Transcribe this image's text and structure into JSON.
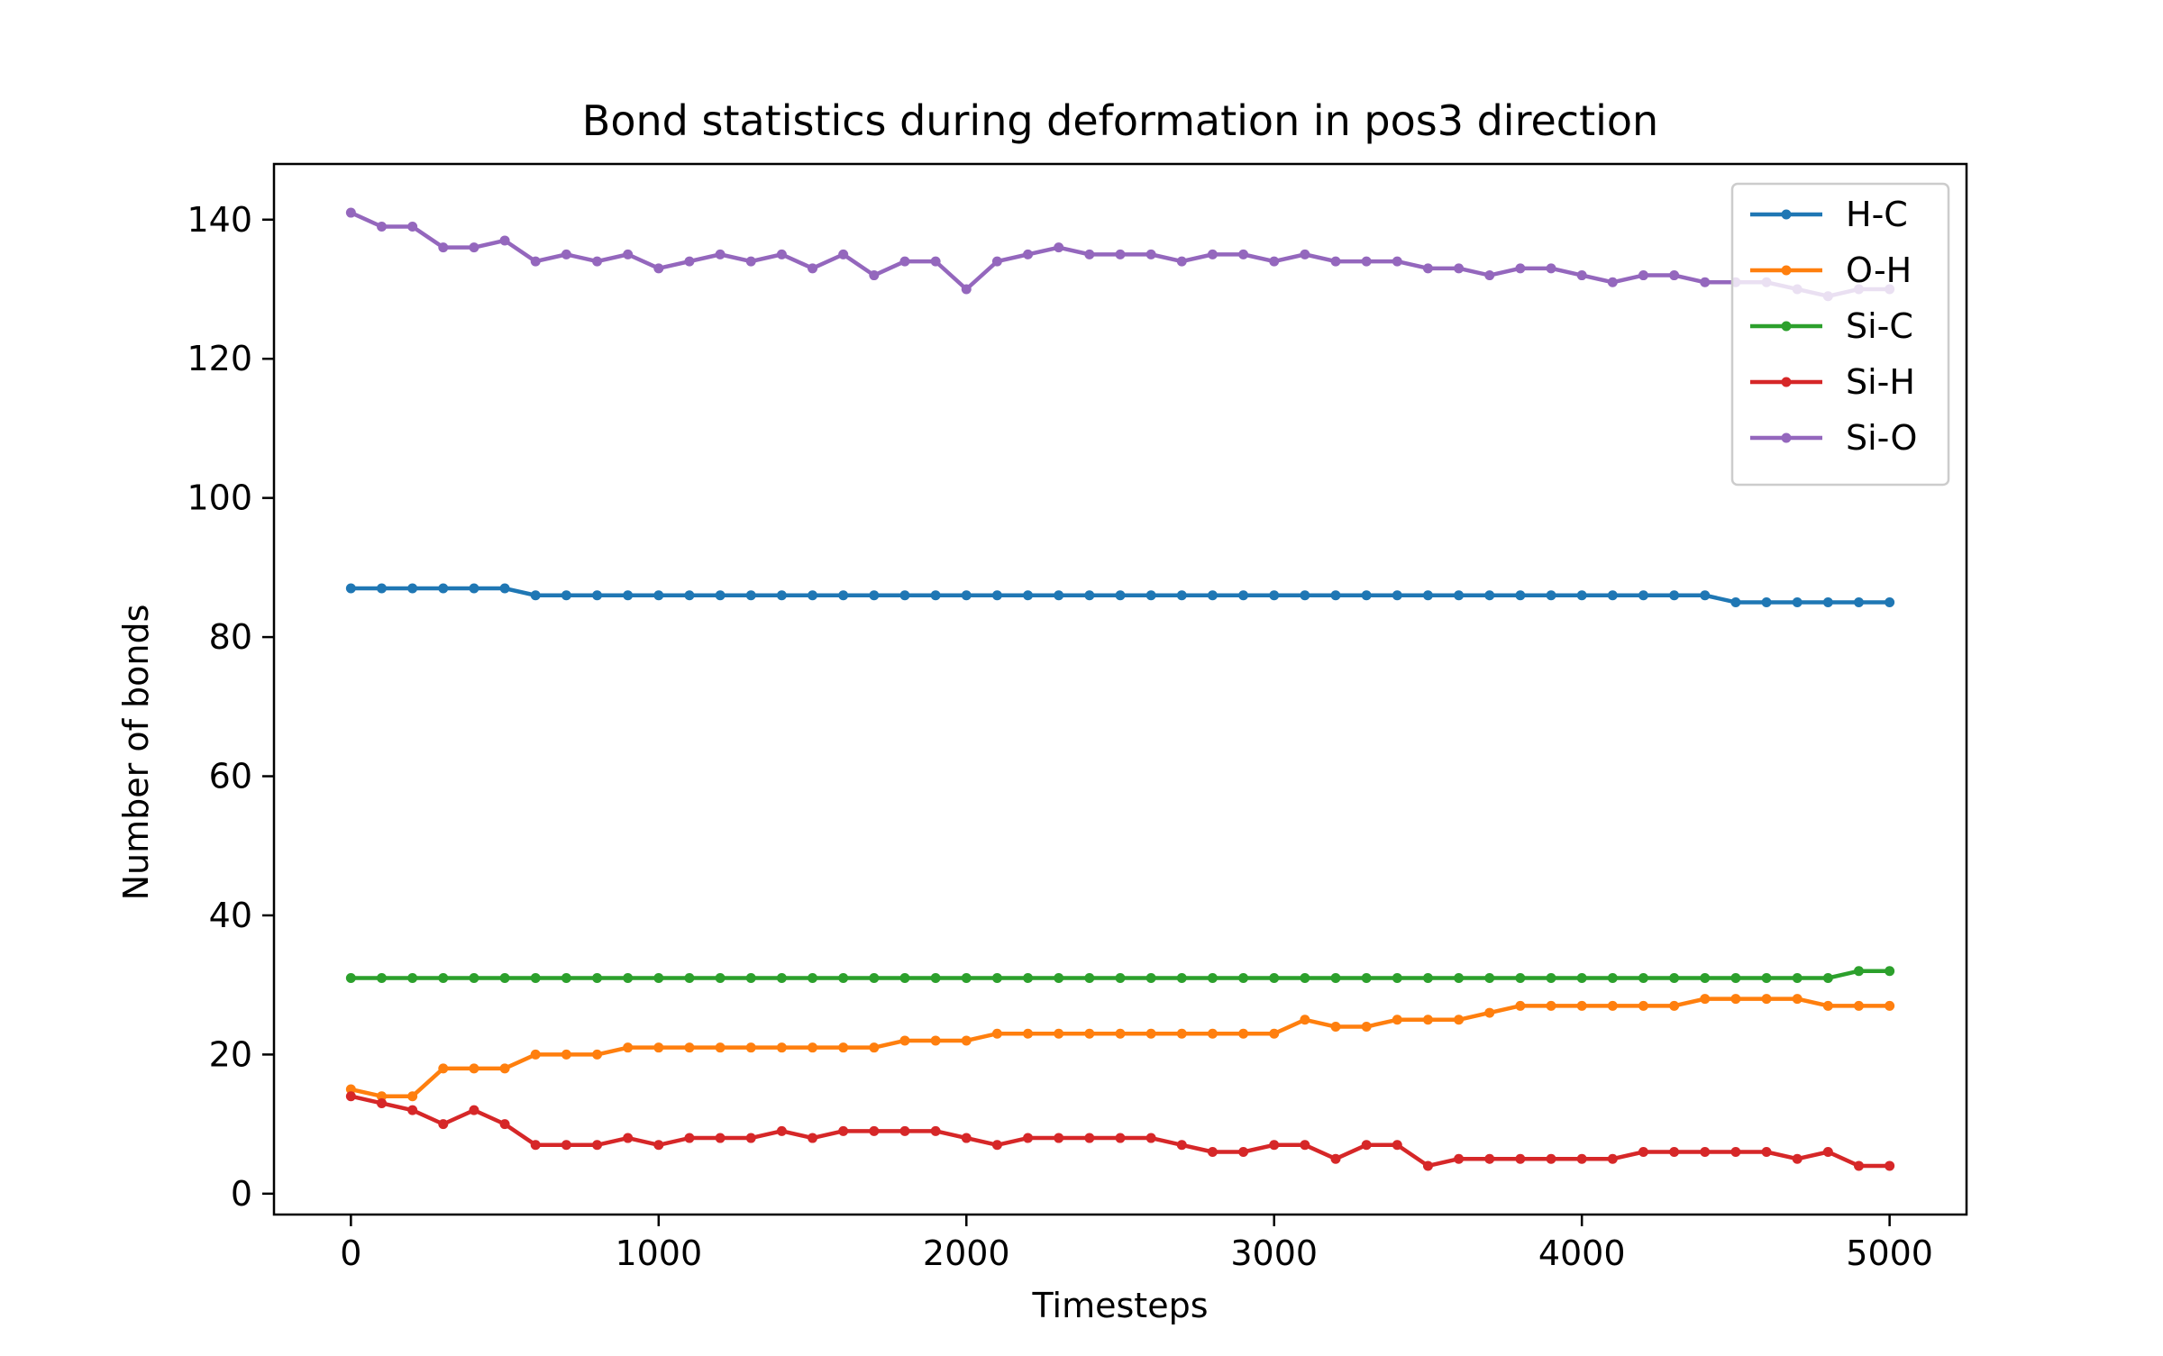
{
  "chart_data": {
    "type": "line",
    "title": "Bond statistics during deformation in pos3 direction",
    "xlabel": "Timesteps",
    "ylabel": "Number of bonds",
    "xlim": [
      -250,
      5250
    ],
    "ylim": [
      -3,
      148
    ],
    "xticks": [
      0,
      1000,
      2000,
      3000,
      4000,
      5000
    ],
    "yticks": [
      0,
      20,
      40,
      60,
      80,
      100,
      120,
      140
    ],
    "grid": false,
    "legend_position": "top-right",
    "x": [
      0,
      100,
      200,
      300,
      400,
      500,
      600,
      700,
      800,
      900,
      1000,
      1100,
      1200,
      1300,
      1400,
      1500,
      1600,
      1700,
      1800,
      1900,
      2000,
      2100,
      2200,
      2300,
      2400,
      2500,
      2600,
      2700,
      2800,
      2900,
      3000,
      3100,
      3200,
      3300,
      3400,
      3500,
      3600,
      3700,
      3800,
      3900,
      4000,
      4100,
      4200,
      4300,
      4400,
      4500,
      4600,
      4700,
      4800,
      4900,
      5000
    ],
    "series": [
      {
        "name": "H-C",
        "color": "#1f77b4",
        "values": [
          87,
          87,
          87,
          87,
          87,
          87,
          86,
          86,
          86,
          86,
          86,
          86,
          86,
          86,
          86,
          86,
          86,
          86,
          86,
          86,
          86,
          86,
          86,
          86,
          86,
          86,
          86,
          86,
          86,
          86,
          86,
          86,
          86,
          86,
          86,
          86,
          86,
          86,
          86,
          86,
          86,
          86,
          86,
          86,
          86,
          85,
          85,
          85,
          85,
          85,
          85
        ]
      },
      {
        "name": "O-H",
        "color": "#ff7f0e",
        "values": [
          15,
          14,
          14,
          18,
          18,
          18,
          20,
          20,
          20,
          21,
          21,
          21,
          21,
          21,
          21,
          21,
          21,
          21,
          22,
          22,
          22,
          23,
          23,
          23,
          23,
          23,
          23,
          23,
          23,
          23,
          23,
          25,
          24,
          24,
          25,
          25,
          25,
          26,
          27,
          27,
          27,
          27,
          27,
          27,
          28,
          28,
          28,
          28,
          27,
          27,
          27
        ]
      },
      {
        "name": "Si-C",
        "color": "#2ca02c",
        "values": [
          31,
          31,
          31,
          31,
          31,
          31,
          31,
          31,
          31,
          31,
          31,
          31,
          31,
          31,
          31,
          31,
          31,
          31,
          31,
          31,
          31,
          31,
          31,
          31,
          31,
          31,
          31,
          31,
          31,
          31,
          31,
          31,
          31,
          31,
          31,
          31,
          31,
          31,
          31,
          31,
          31,
          31,
          31,
          31,
          31,
          31,
          31,
          31,
          31,
          32,
          32
        ]
      },
      {
        "name": "Si-H",
        "color": "#d62728",
        "values": [
          14,
          13,
          12,
          10,
          12,
          10,
          7,
          7,
          7,
          8,
          7,
          8,
          8,
          8,
          9,
          8,
          9,
          9,
          9,
          9,
          8,
          7,
          8,
          8,
          8,
          8,
          8,
          7,
          6,
          6,
          7,
          7,
          5,
          7,
          7,
          4,
          5,
          5,
          5,
          5,
          5,
          5,
          6,
          6,
          6,
          6,
          6,
          5,
          6,
          4,
          4
        ]
      },
      {
        "name": "Si-O",
        "color": "#9467bd",
        "values": [
          141,
          139,
          139,
          136,
          136,
          137,
          134,
          135,
          134,
          135,
          133,
          134,
          135,
          134,
          135,
          133,
          135,
          132,
          134,
          134,
          130,
          134,
          135,
          136,
          135,
          135,
          135,
          134,
          135,
          135,
          134,
          135,
          134,
          134,
          134,
          133,
          133,
          132,
          133,
          133,
          132,
          131,
          132,
          132,
          131,
          131,
          131,
          130,
          129,
          130,
          130
        ]
      }
    ]
  }
}
